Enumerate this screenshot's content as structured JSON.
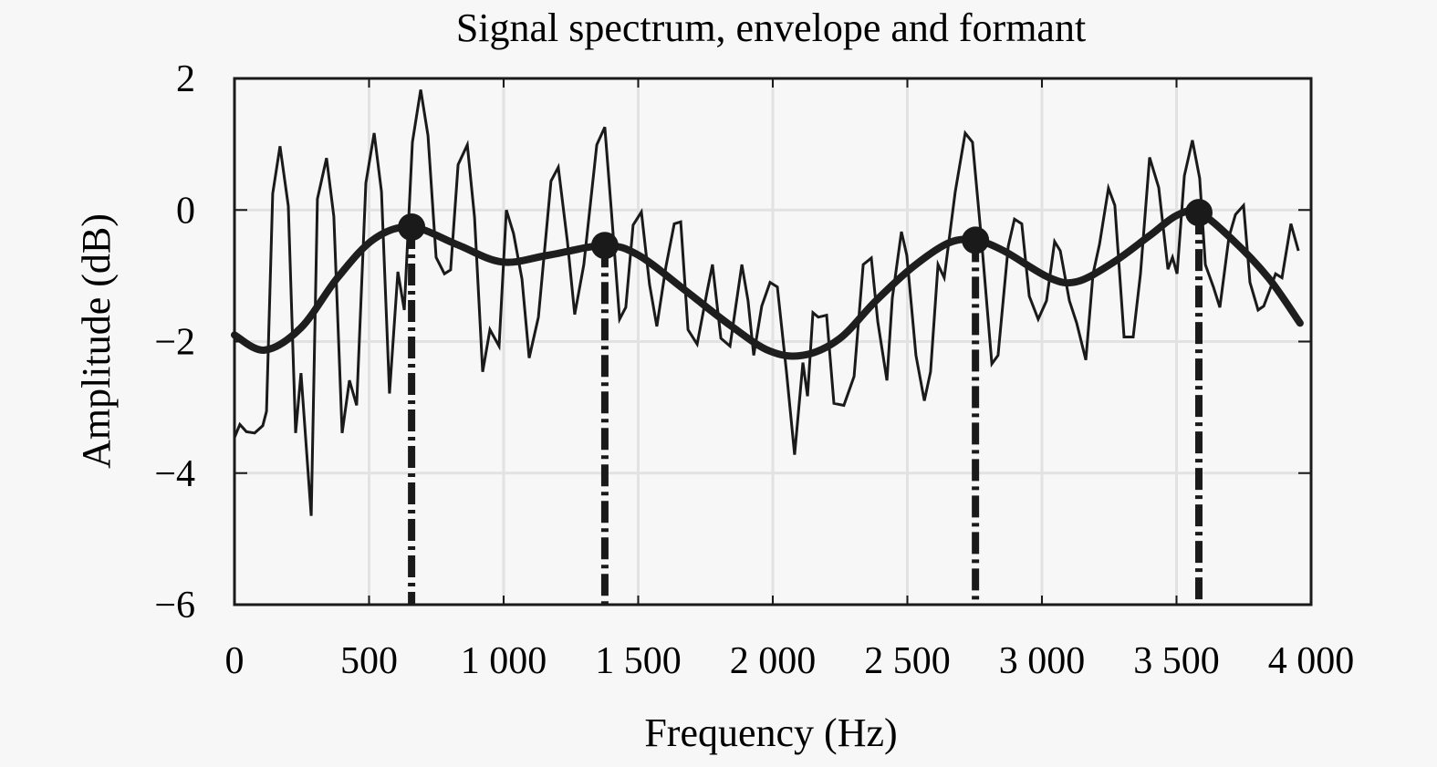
{
  "chart_data": {
    "type": "line",
    "title": "Signal spectrum, envelope and formant",
    "xlabel": "Frequency (Hz)",
    "ylabel": "Amplitude (dB)",
    "xlim": [
      0,
      4000
    ],
    "ylim": [
      -6,
      2
    ],
    "grid": true,
    "legend": null,
    "x_ticks": [
      0,
      500,
      1000,
      1500,
      2000,
      2500,
      3000,
      3500,
      4000
    ],
    "x_tick_labels": [
      "0",
      "500",
      "1 000",
      "1 500",
      "2 000",
      "2 500",
      "3 000",
      "3 500",
      "4 000"
    ],
    "y_ticks": [
      2,
      0,
      -2,
      -4,
      -6
    ],
    "y_tick_labels": [
      "2",
      "0",
      "−2",
      "−4",
      "−6"
    ],
    "series": [
      {
        "name": "Signal spectrum",
        "style": "thin solid line",
        "x": [
          0,
          20,
          44,
          75,
          105,
          119,
          142,
          169,
          200,
          227,
          247,
          285,
          308,
          342,
          369,
          400,
          427,
          454,
          488,
          519,
          546,
          576,
          607,
          631,
          661,
          692,
          719,
          749,
          780,
          803,
          831,
          865,
          892,
          922,
          949,
          983,
          1010,
          1037,
          1068,
          1095,
          1129,
          1176,
          1203,
          1237,
          1264,
          1298,
          1346,
          1376,
          1400,
          1431,
          1454,
          1481,
          1512,
          1542,
          1569,
          1603,
          1634,
          1658,
          1685,
          1719,
          1756,
          1776,
          1807,
          1841,
          1885,
          1908,
          1929,
          1959,
          1990,
          2017,
          2051,
          2081,
          2112,
          2129,
          2149,
          2169,
          2200,
          2227,
          2264,
          2302,
          2336,
          2366,
          2390,
          2424,
          2444,
          2478,
          2498,
          2532,
          2563,
          2586,
          2614,
          2637,
          2678,
          2715,
          2742,
          2776,
          2814,
          2837,
          2875,
          2898,
          2925,
          2953,
          2986,
          3017,
          3047,
          3068,
          3102,
          3129,
          3163,
          3190,
          3214,
          3247,
          3271,
          3305,
          3339,
          3366,
          3400,
          3434,
          3468,
          3485,
          3502,
          3529,
          3559,
          3586,
          3607,
          3637,
          3661,
          3695,
          3719,
          3749,
          3773,
          3803,
          3824,
          3847,
          3868,
          3892,
          3925,
          3953
        ],
        "y": [
          -3.46,
          -3.26,
          -3.37,
          -3.39,
          -3.28,
          -3.06,
          0.25,
          0.97,
          0.06,
          -3.39,
          -2.48,
          -4.65,
          0.17,
          0.79,
          -0.1,
          -3.39,
          -2.59,
          -2.97,
          0.41,
          1.17,
          0.28,
          -2.79,
          -0.94,
          -1.52,
          1.03,
          1.83,
          1.13,
          -0.72,
          -0.97,
          -0.91,
          0.69,
          0.99,
          -0.11,
          -2.46,
          -1.82,
          -2.07,
          0.0,
          -0.36,
          -1.05,
          -2.25,
          -1.63,
          0.44,
          0.65,
          -0.48,
          -1.59,
          -0.83,
          0.99,
          1.26,
          0.0,
          -1.66,
          -1.48,
          -0.23,
          -0.03,
          -1.13,
          -1.77,
          -0.86,
          -0.21,
          -0.18,
          -1.82,
          -2.04,
          -1.24,
          -0.83,
          -1.95,
          -2.07,
          -0.83,
          -1.38,
          -2.21,
          -1.46,
          -1.1,
          -1.17,
          -2.46,
          -3.72,
          -2.32,
          -2.83,
          -1.56,
          -1.63,
          -1.6,
          -2.94,
          -2.97,
          -2.53,
          -0.83,
          -0.73,
          -1.7,
          -2.59,
          -1.34,
          -0.33,
          -0.69,
          -2.21,
          -2.9,
          -2.46,
          -0.83,
          -1.03,
          0.28,
          1.17,
          1.03,
          -0.48,
          -2.34,
          -2.21,
          -0.55,
          -0.14,
          -0.21,
          -1.31,
          -1.66,
          -1.38,
          -0.48,
          -0.62,
          -1.38,
          -1.72,
          -2.28,
          -0.97,
          -0.52,
          0.33,
          0.07,
          -1.93,
          -1.93,
          -0.97,
          0.8,
          0.34,
          -0.9,
          -0.72,
          -0.97,
          0.52,
          1.06,
          0.48,
          -0.83,
          -1.17,
          -1.48,
          -0.41,
          -0.07,
          0.07,
          -1.1,
          -1.52,
          -1.46,
          -1.21,
          -0.97,
          -1.03,
          -0.21,
          -0.62
        ]
      },
      {
        "name": "Envelope",
        "style": "thick solid line",
        "x": [
          0,
          112,
          247,
          383,
          519,
          658,
          824,
          993,
          1163,
          1376,
          1502,
          1671,
          1841,
          1986,
          2112,
          2247,
          2383,
          2519,
          2654,
          2753,
          2858,
          3027,
          3129,
          3264,
          3400,
          3502,
          3583,
          3705,
          3841,
          3959
        ],
        "y": [
          -1.9,
          -2.13,
          -1.79,
          -1.03,
          -0.44,
          -0.26,
          -0.52,
          -0.79,
          -0.69,
          -0.54,
          -0.69,
          -1.21,
          -1.75,
          -2.14,
          -2.21,
          -1.96,
          -1.38,
          -0.87,
          -0.5,
          -0.46,
          -0.62,
          -1.03,
          -1.09,
          -0.8,
          -0.39,
          -0.08,
          -0.04,
          -0.44,
          -1.03,
          -1.72
        ]
      },
      {
        "name": "Formants",
        "style": "filled circle markers with dash-dot vertical lines to x-axis",
        "x": [
          658,
          1376,
          2753,
          3583
        ],
        "y": [
          -0.26,
          -0.54,
          -0.46,
          -0.04
        ]
      }
    ]
  }
}
